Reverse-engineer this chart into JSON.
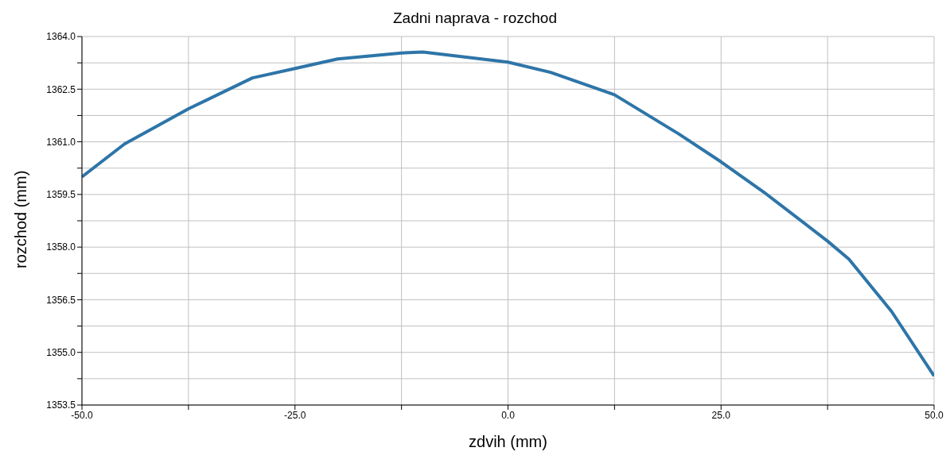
{
  "chart_data": {
    "type": "line",
    "title": "Zadni naprava - rozchod",
    "xlabel": "zdvih (mm)",
    "ylabel": "rozchod (mm)",
    "x": [
      -50,
      -45,
      -37.5,
      -30,
      -25,
      -20,
      -12.5,
      -10,
      0,
      5,
      12.5,
      20,
      25,
      30,
      37.5,
      40,
      45,
      50
    ],
    "series": [
      {
        "color": "#2e75a8",
        "values": [
          1360.0,
          1360.94,
          1361.94,
          1362.82,
          1363.09,
          1363.36,
          1363.53,
          1363.56,
          1363.27,
          1362.98,
          1362.34,
          1361.23,
          1360.43,
          1359.57,
          1358.17,
          1357.66,
          1356.17,
          1354.33
        ]
      }
    ],
    "xlim": [
      -50,
      50
    ],
    "xticks": [
      {
        "value": -50,
        "label": "-50.0"
      },
      {
        "value": -37.5,
        "label": null
      },
      {
        "value": -25,
        "label": "-25.0"
      },
      {
        "value": -12.5,
        "label": null
      },
      {
        "value": 0,
        "label": "0.0"
      },
      {
        "value": 12.5,
        "label": null
      },
      {
        "value": 25,
        "label": "25.0"
      },
      {
        "value": 37.5,
        "label": null
      },
      {
        "value": 50,
        "label": "50.0"
      }
    ],
    "ylim": [
      1353.5,
      1364
    ],
    "yticks": [
      {
        "value": 1353.5,
        "label": "1353.5"
      },
      {
        "value": 1354.25,
        "label": null
      },
      {
        "value": 1355,
        "label": "1355.0"
      },
      {
        "value": 1355.75,
        "label": null
      },
      {
        "value": 1356.5,
        "label": "1356.5"
      },
      {
        "value": 1357.25,
        "label": null
      },
      {
        "value": 1358,
        "label": "1358.0"
      },
      {
        "value": 1358.75,
        "label": null
      },
      {
        "value": 1359.5,
        "label": "1359.5"
      },
      {
        "value": 1360.25,
        "label": null
      },
      {
        "value": 1361,
        "label": "1361.0"
      },
      {
        "value": 1361.75,
        "label": null
      },
      {
        "value": 1362.5,
        "label": "1362.5"
      },
      {
        "value": 1363.25,
        "label": null
      },
      {
        "value": 1364,
        "label": "1364.0"
      }
    ],
    "grid": true,
    "marker": "none",
    "line_style": "solid"
  }
}
